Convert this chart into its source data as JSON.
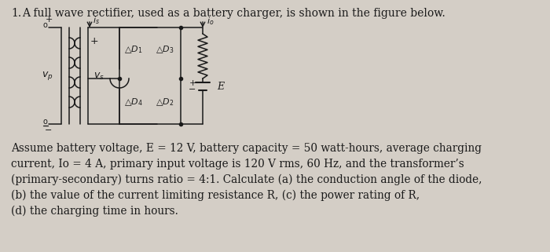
{
  "title_number": "1.",
  "title_text": "  A full wave rectifier, used as a battery charger, is shown in the figure below.",
  "body_text": "Assume battery voltage, E = 12 V, battery capacity = 50 watt-hours, average charging\ncurrent, Io = 4 A, primary input voltage is 120 V rms, 60 Hz, and the transformer’s\n(primary-secondary) turns ratio = 4:1. Calculate (a) the conduction angle of the diode,\n(b) the value of the current limiting resistance R, (c) the power rating of R,\n(d) the charging time in hours.",
  "bg_color": "#d4cec6",
  "text_color": "#1a1a1a",
  "font_size_title": 10.0,
  "font_size_body": 9.8
}
